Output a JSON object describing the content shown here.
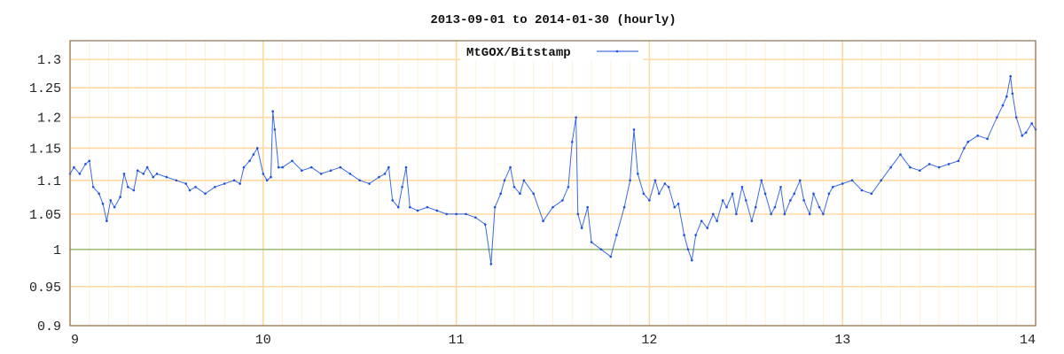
{
  "chart_data": {
    "type": "line",
    "title": "2013-09-01 to 2014-01-30 (hourly)",
    "xlabel": "",
    "ylabel": "",
    "xlim": [
      9,
      14
    ],
    "ylim": [
      0.9,
      1.334
    ],
    "y_scale": "log",
    "grid": true,
    "legend_position": "top-center",
    "x_ticks": [
      "9",
      "10",
      "11",
      "12",
      "13",
      "14"
    ],
    "y_ticks": [
      "0.9",
      "0.95",
      "1",
      "1.05",
      "1.1",
      "1.15",
      "1.2",
      "1.25",
      "1.3"
    ],
    "reference_line": 1,
    "colors": {
      "series": "#1a4fe0",
      "grid_major": "#ffd9a0",
      "grid_minor": "#fff0da",
      "reference": "#9fbf80",
      "axis": "#8b7355"
    },
    "series": [
      {
        "name": "MtGOX/Bitstamp",
        "x": [
          9.0,
          9.02,
          9.05,
          9.08,
          9.1,
          9.12,
          9.15,
          9.17,
          9.19,
          9.21,
          9.23,
          9.26,
          9.28,
          9.3,
          9.33,
          9.35,
          9.38,
          9.4,
          9.43,
          9.45,
          9.5,
          9.55,
          9.6,
          9.62,
          9.65,
          9.7,
          9.75,
          9.8,
          9.85,
          9.88,
          9.9,
          9.93,
          9.95,
          9.97,
          10.0,
          10.02,
          10.04,
          10.05,
          10.06,
          10.08,
          10.1,
          10.15,
          10.2,
          10.25,
          10.3,
          10.35,
          10.4,
          10.45,
          10.5,
          10.55,
          10.6,
          10.63,
          10.65,
          10.67,
          10.7,
          10.72,
          10.74,
          10.76,
          10.8,
          10.85,
          10.9,
          10.95,
          11.0,
          11.05,
          11.1,
          11.15,
          11.18,
          11.2,
          11.23,
          11.25,
          11.28,
          11.3,
          11.33,
          11.35,
          11.4,
          11.45,
          11.5,
          11.55,
          11.58,
          11.6,
          11.62,
          11.63,
          11.65,
          11.68,
          11.7,
          11.75,
          11.8,
          11.83,
          11.87,
          11.9,
          11.92,
          11.94,
          11.97,
          12.0,
          12.03,
          12.05,
          12.08,
          12.1,
          12.13,
          12.15,
          12.18,
          12.2,
          12.22,
          12.24,
          12.27,
          12.3,
          12.33,
          12.35,
          12.38,
          12.4,
          12.43,
          12.45,
          12.48,
          12.5,
          12.53,
          12.55,
          12.58,
          12.6,
          12.63,
          12.65,
          12.68,
          12.7,
          12.73,
          12.75,
          12.78,
          12.8,
          12.83,
          12.85,
          12.88,
          12.9,
          12.93,
          12.95,
          13.0,
          13.05,
          13.1,
          13.15,
          13.2,
          13.25,
          13.3,
          13.35,
          13.4,
          13.45,
          13.5,
          13.55,
          13.6,
          13.63,
          13.65,
          13.7,
          13.75,
          13.8,
          13.83,
          13.85,
          13.87,
          13.88,
          13.9,
          13.93,
          13.95,
          13.98,
          14.0
        ],
        "y": [
          1.11,
          1.12,
          1.11,
          1.125,
          1.13,
          1.09,
          1.08,
          1.065,
          1.04,
          1.07,
          1.06,
          1.075,
          1.11,
          1.09,
          1.085,
          1.115,
          1.11,
          1.12,
          1.105,
          1.11,
          1.105,
          1.1,
          1.095,
          1.085,
          1.09,
          1.08,
          1.09,
          1.095,
          1.1,
          1.095,
          1.12,
          1.13,
          1.14,
          1.15,
          1.11,
          1.1,
          1.105,
          1.21,
          1.18,
          1.12,
          1.12,
          1.13,
          1.115,
          1.12,
          1.11,
          1.115,
          1.12,
          1.11,
          1.1,
          1.095,
          1.105,
          1.11,
          1.12,
          1.07,
          1.06,
          1.09,
          1.12,
          1.06,
          1.055,
          1.06,
          1.055,
          1.05,
          1.05,
          1.05,
          1.045,
          1.035,
          0.98,
          1.06,
          1.08,
          1.1,
          1.12,
          1.09,
          1.08,
          1.1,
          1.08,
          1.04,
          1.06,
          1.07,
          1.09,
          1.16,
          1.2,
          1.05,
          1.03,
          1.06,
          1.01,
          1.0,
          0.99,
          1.02,
          1.06,
          1.1,
          1.18,
          1.11,
          1.08,
          1.07,
          1.1,
          1.08,
          1.095,
          1.09,
          1.06,
          1.065,
          1.02,
          1.0,
          0.985,
          1.02,
          1.04,
          1.03,
          1.05,
          1.04,
          1.07,
          1.06,
          1.08,
          1.05,
          1.09,
          1.07,
          1.04,
          1.06,
          1.1,
          1.08,
          1.05,
          1.06,
          1.09,
          1.05,
          1.07,
          1.08,
          1.1,
          1.07,
          1.05,
          1.08,
          1.06,
          1.05,
          1.08,
          1.09,
          1.095,
          1.1,
          1.085,
          1.08,
          1.1,
          1.12,
          1.14,
          1.12,
          1.115,
          1.125,
          1.12,
          1.125,
          1.13,
          1.15,
          1.16,
          1.17,
          1.165,
          1.2,
          1.22,
          1.235,
          1.27,
          1.24,
          1.2,
          1.17,
          1.175,
          1.19,
          1.18
        ]
      }
    ]
  }
}
